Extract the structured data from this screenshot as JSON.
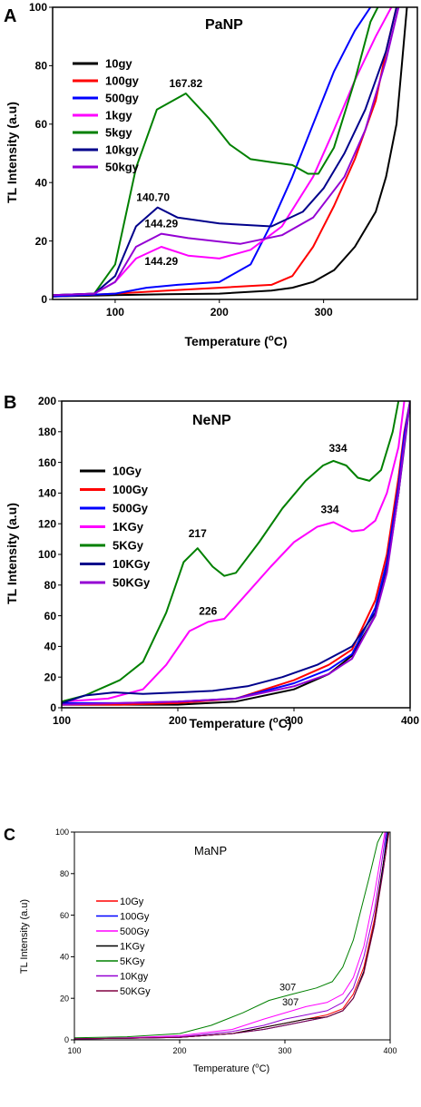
{
  "chart_data": [
    {
      "type": "line",
      "panel_letter": "A",
      "title": "PaNP",
      "xlabel": "Temperature (",
      "xlabel_unit": "C)",
      "ylabel": "TL Intensity (a.u)",
      "xlim": [
        40,
        390
      ],
      "ylim": [
        0,
        100
      ],
      "xticks": [
        100,
        200,
        300
      ],
      "yticks": [
        0,
        20,
        40,
        60,
        80,
        100
      ],
      "legend_position": "top-left",
      "series": [
        {
          "name": "10gy",
          "color": "#000000",
          "x": [
            40,
            100,
            150,
            200,
            250,
            270,
            290,
            310,
            330,
            350,
            360,
            370,
            375,
            380
          ],
          "y": [
            1,
            1.5,
            1.8,
            2,
            3,
            4,
            6,
            10,
            18,
            30,
            42,
            60,
            80,
            100
          ]
        },
        {
          "name": "100gy",
          "color": "#ff0000",
          "x": [
            40,
            100,
            150,
            200,
            250,
            270,
            290,
            310,
            330,
            350,
            360,
            370
          ],
          "y": [
            1,
            2,
            3,
            4,
            5,
            8,
            18,
            32,
            48,
            68,
            85,
            100
          ]
        },
        {
          "name": "500gy",
          "color": "#0000ff",
          "x": [
            40,
            100,
            130,
            160,
            200,
            230,
            250,
            270,
            290,
            310,
            330,
            345
          ],
          "y": [
            1,
            2,
            4,
            5,
            6,
            12,
            26,
            42,
            60,
            78,
            92,
            100
          ]
        },
        {
          "name": "1kgy",
          "color": "#ff00ff",
          "x": [
            40,
            80,
            100,
            120,
            144.29,
            170,
            200,
            230,
            260,
            290,
            310,
            330,
            350,
            365
          ],
          "y": [
            1.5,
            2,
            6,
            14,
            18,
            15,
            14,
            17,
            25,
            42,
            58,
            75,
            90,
            100
          ]
        },
        {
          "name": "5kgy",
          "color": "#008000",
          "x": [
            40,
            80,
            100,
            120,
            140,
            167.82,
            190,
            210,
            230,
            250,
            270,
            285,
            295,
            310,
            330,
            345,
            352
          ],
          "y": [
            1.5,
            2,
            12,
            45,
            65,
            70.5,
            62,
            53,
            48,
            47,
            46,
            43,
            43,
            52,
            75,
            95,
            100
          ]
        },
        {
          "name": "10kgy",
          "color": "#00008b",
          "x": [
            40,
            80,
            100,
            120,
            140.7,
            160,
            200,
            250,
            280,
            300,
            320,
            340,
            360,
            370
          ],
          "y": [
            1.5,
            2,
            8,
            25,
            31.5,
            28,
            26,
            25,
            30,
            38,
            50,
            65,
            85,
            100
          ]
        },
        {
          "name": "50kgy",
          "color": "#9400d3",
          "x": [
            40,
            80,
            100,
            120,
            144.29,
            170,
            220,
            260,
            290,
            320,
            340,
            360,
            372
          ],
          "y": [
            1.5,
            2,
            6,
            18,
            22.5,
            21,
            19,
            22,
            28,
            42,
            58,
            82,
            100
          ]
        }
      ],
      "annotations": [
        {
          "text": "167.82",
          "x": 167.82,
          "y": 70.5
        },
        {
          "text": "140.70",
          "x": 140.7,
          "y": 31.5
        },
        {
          "text": "144.29",
          "x": 144.29,
          "y": 22.5
        },
        {
          "text": "144.29",
          "x": 144.29,
          "y": 18
        }
      ]
    },
    {
      "type": "line",
      "panel_letter": "B",
      "title": "NeNP",
      "xlabel": "Temperature (",
      "xlabel_unit": "C)",
      "ylabel": "TL Intensity (a.u)",
      "xlim": [
        100,
        400
      ],
      "ylim": [
        0,
        200
      ],
      "xticks": [
        100,
        200,
        300,
        400
      ],
      "yticks": [
        0,
        20,
        40,
        60,
        80,
        100,
        120,
        140,
        160,
        180,
        200
      ],
      "legend_position": "left",
      "series": [
        {
          "name": "10Gy",
          "color": "#000000",
          "x": [
            100,
            150,
            200,
            250,
            300,
            330,
            350,
            370,
            380,
            390,
            395,
            400
          ],
          "y": [
            2,
            2,
            2,
            4,
            12,
            22,
            34,
            60,
            90,
            140,
            175,
            200
          ]
        },
        {
          "name": "100Gy",
          "color": "#ff0000",
          "x": [
            100,
            150,
            200,
            250,
            300,
            330,
            350,
            370,
            380,
            390,
            395,
            400
          ],
          "y": [
            2,
            2,
            3,
            6,
            18,
            28,
            38,
            70,
            100,
            150,
            180,
            200
          ]
        },
        {
          "name": "500Gy",
          "color": "#0000ff",
          "x": [
            100,
            150,
            200,
            250,
            300,
            330,
            350,
            370,
            380,
            390,
            395,
            400
          ],
          "y": [
            3,
            3,
            4,
            6,
            16,
            25,
            35,
            65,
            95,
            145,
            178,
            200
          ]
        },
        {
          "name": "1KGy",
          "color": "#ff00ff",
          "x": [
            100,
            140,
            170,
            190,
            210,
            226,
            240,
            260,
            280,
            300,
            320,
            334,
            350,
            360,
            370,
            380,
            390,
            395
          ],
          "y": [
            4,
            6,
            12,
            28,
            50,
            56,
            58,
            75,
            92,
            108,
            118,
            121,
            115,
            116,
            122,
            140,
            170,
            200
          ]
        },
        {
          "name": "5KGy",
          "color": "#008000",
          "x": [
            100,
            120,
            150,
            170,
            190,
            205,
            217,
            230,
            240,
            250,
            270,
            290,
            310,
            325,
            334,
            345,
            355,
            365,
            375,
            385,
            390
          ],
          "y": [
            4,
            8,
            18,
            30,
            62,
            95,
            104,
            92,
            86,
            88,
            108,
            130,
            148,
            158,
            161,
            158,
            150,
            148,
            155,
            180,
            200
          ]
        },
        {
          "name": "10KGy",
          "color": "#00008b",
          "x": [
            100,
            120,
            145,
            170,
            200,
            230,
            260,
            290,
            320,
            350,
            370,
            380,
            390,
            395,
            400
          ],
          "y": [
            3,
            8,
            10,
            9,
            10,
            11,
            14,
            20,
            28,
            40,
            62,
            90,
            140,
            170,
            200
          ]
        },
        {
          "name": "50KGy",
          "color": "#9400d3",
          "x": [
            100,
            150,
            200,
            250,
            300,
            330,
            350,
            370,
            380,
            390,
            395,
            400
          ],
          "y": [
            2,
            3,
            4,
            6,
            14,
            22,
            32,
            60,
            88,
            140,
            172,
            200
          ]
        }
      ],
      "annotations": [
        {
          "text": "334",
          "x": 334,
          "y": 161
        },
        {
          "text": "334",
          "x": 334,
          "y": 121
        },
        {
          "text": "217",
          "x": 217,
          "y": 104
        },
        {
          "text": "226",
          "x": 226,
          "y": 56
        }
      ]
    },
    {
      "type": "line",
      "panel_letter": "C",
      "title": "MaNP",
      "xlabel": "Temperature (",
      "xlabel_unit": "C)",
      "ylabel": "TL Intensity (a.u)",
      "xlim": [
        100,
        400
      ],
      "ylim": [
        0,
        100
      ],
      "xticks": [
        100,
        200,
        300,
        400
      ],
      "yticks": [
        0,
        20,
        40,
        60,
        80,
        100
      ],
      "legend_position": "left",
      "series": [
        {
          "name": "10Gy",
          "color": "#ff0000",
          "x": [
            100,
            150,
            200,
            250,
            280,
            300,
            320,
            340,
            355,
            365,
            375,
            385,
            392,
            398
          ],
          "y": [
            0.5,
            0.8,
            1.2,
            3,
            6,
            8,
            10,
            12,
            15,
            22,
            35,
            58,
            80,
            100
          ]
        },
        {
          "name": "100Gy",
          "color": "#0000ff",
          "x": [
            100,
            150,
            200,
            250,
            280,
            300,
            320,
            340,
            355,
            365,
            375,
            385,
            392,
            397
          ],
          "y": [
            0.5,
            0.8,
            1.2,
            3,
            5,
            7,
            9,
            11,
            14,
            20,
            33,
            55,
            78,
            100
          ]
        },
        {
          "name": "500Gy",
          "color": "#ff00ff",
          "x": [
            100,
            150,
            200,
            250,
            280,
            307,
            320,
            340,
            355,
            365,
            375,
            385,
            390,
            395
          ],
          "y": [
            0.5,
            1,
            2,
            5,
            10,
            14,
            16,
            18,
            22,
            30,
            45,
            70,
            85,
            100
          ]
        },
        {
          "name": "1KGy",
          "color": "#000000",
          "x": [
            100,
            150,
            200,
            250,
            280,
            300,
            320,
            340,
            355,
            365,
            375,
            385,
            392,
            398
          ],
          "y": [
            0.5,
            0.8,
            1.2,
            3,
            6,
            8,
            10,
            11,
            14,
            20,
            33,
            56,
            80,
            100
          ]
        },
        {
          "name": "5KGy",
          "color": "#008000",
          "x": [
            100,
            150,
            200,
            230,
            260,
            285,
            307,
            330,
            345,
            355,
            365,
            372,
            380,
            388,
            393
          ],
          "y": [
            1,
            1.5,
            3,
            7,
            13,
            19,
            22,
            25,
            28,
            35,
            48,
            62,
            78,
            95,
            100
          ]
        },
        {
          "name": "10Kgy",
          "color": "#9400d3",
          "x": [
            100,
            150,
            200,
            250,
            280,
            300,
            320,
            340,
            355,
            365,
            375,
            385,
            391,
            396
          ],
          "y": [
            0.5,
            0.8,
            1.5,
            4,
            7,
            10,
            12,
            14,
            18,
            25,
            40,
            62,
            82,
            100
          ]
        },
        {
          "name": "50KGy",
          "color": "#800040",
          "x": [
            100,
            150,
            200,
            250,
            280,
            300,
            320,
            340,
            355,
            365,
            375,
            385,
            393,
            399
          ],
          "y": [
            0.5,
            0.8,
            1.2,
            3,
            5,
            7,
            9,
            11,
            14,
            20,
            32,
            55,
            80,
            100
          ]
        }
      ],
      "annotations": [
        {
          "text": "307",
          "x": 307,
          "y": 22
        },
        {
          "text": "307",
          "x": 307,
          "y": 14
        }
      ]
    }
  ]
}
